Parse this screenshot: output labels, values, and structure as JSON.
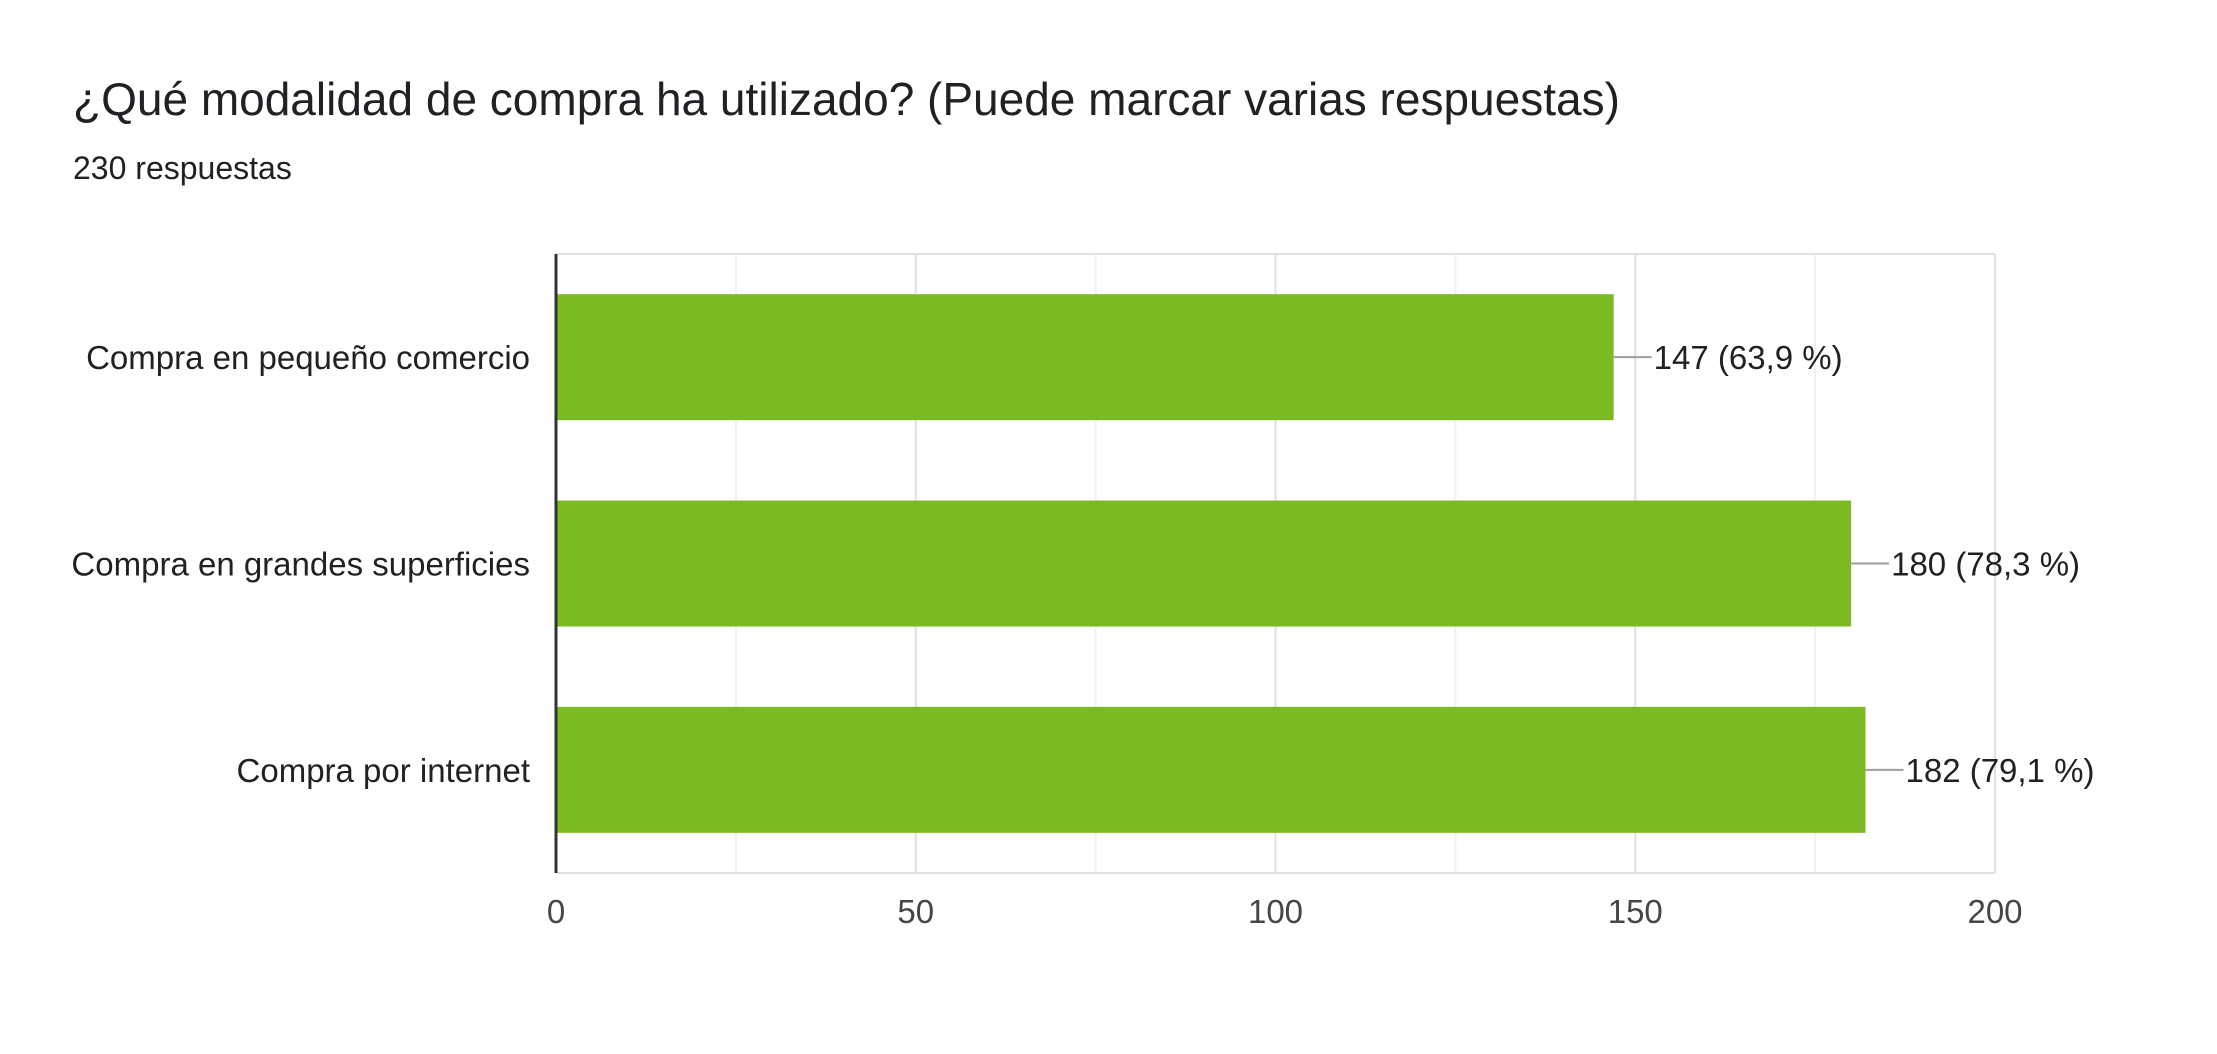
{
  "header": {
    "title": "¿Qué modalidad de compra ha utilizado? (Puede marcar varias respuestas)",
    "responses": "230 respuestas"
  },
  "chart_data": {
    "type": "bar",
    "orientation": "horizontal",
    "categories": [
      "Compra en pequeño comercio",
      "Compra en grandes superficies",
      "Compra por internet"
    ],
    "values": [
      147,
      180,
      182
    ],
    "data_labels": [
      "147 (63,9 %)",
      "180 (78,3 %)",
      "182 (79,1 %)"
    ],
    "xlim": [
      0,
      200
    ],
    "x_ticks": [
      0,
      50,
      100,
      150,
      200
    ],
    "x_tick_labels": [
      "0",
      "50",
      "100",
      "150",
      "200"
    ],
    "grid": true,
    "colors": {
      "bar": "#7cba24",
      "grid_major": "#e0e0e0",
      "grid_minor": "#f1f1f1",
      "axis": "#333333",
      "leader": "#9e9e9e"
    }
  }
}
